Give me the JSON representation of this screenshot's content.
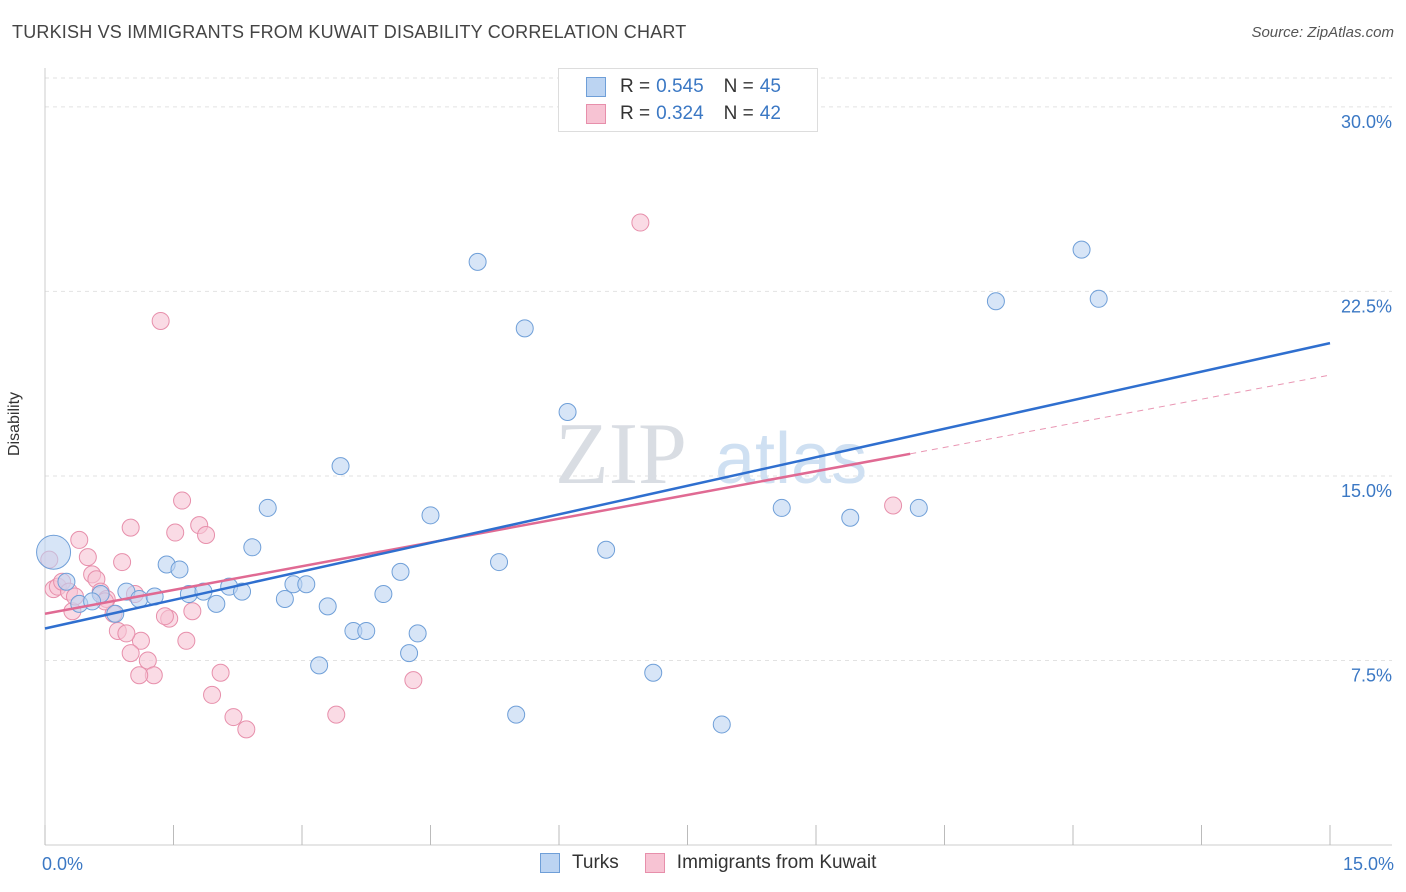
{
  "title": "TURKISH VS IMMIGRANTS FROM KUWAIT DISABILITY CORRELATION CHART",
  "source": "Source: ZipAtlas.com",
  "watermark": {
    "zip": "ZIP",
    "atlas": "atlas"
  },
  "legend_top": {
    "r_label": "R =",
    "n_label": "N =",
    "rows": [
      {
        "r": "0.545",
        "n": "45"
      },
      {
        "r": "0.324",
        "n": "42"
      }
    ]
  },
  "colors": {
    "turks_fill": "#bcd4f2",
    "turks_stroke": "#6f9fd8",
    "turks_line": "#2f6fcf",
    "kuwait_fill": "#f7c3d3",
    "kuwait_stroke": "#e78fab",
    "kuwait_line": "#e06a93",
    "axis_text": "#3b78c4",
    "grid": "#e2e2e2"
  },
  "chart_data": {
    "type": "scatter",
    "xlabel": "",
    "ylabel": "Disability",
    "xlim": [
      0,
      15
    ],
    "ylim": [
      0,
      31.5
    ],
    "x_tick_labels": [
      {
        "value": 0,
        "label": "0.0%"
      },
      {
        "value": 15,
        "label": "15.0%"
      }
    ],
    "y_tick_labels": [
      {
        "value": 7.5,
        "label": "7.5%"
      },
      {
        "value": 15,
        "label": "15.0%"
      },
      {
        "value": 22.5,
        "label": "22.5%"
      },
      {
        "value": 30,
        "label": "30.0%"
      }
    ],
    "series": [
      {
        "name": "Turks",
        "trend": {
          "x0": 0,
          "y0": 8.8,
          "x1": 15,
          "y1": 20.4,
          "dashed_to": null
        },
        "points": [
          {
            "x": 0.1,
            "y": 11.9,
            "big": true
          },
          {
            "x": 0.25,
            "y": 10.7
          },
          {
            "x": 0.4,
            "y": 9.8
          },
          {
            "x": 0.65,
            "y": 10.2
          },
          {
            "x": 0.82,
            "y": 9.4
          },
          {
            "x": 0.95,
            "y": 10.3
          },
          {
            "x": 1.1,
            "y": 10.0
          },
          {
            "x": 1.28,
            "y": 10.1
          },
          {
            "x": 1.42,
            "y": 11.4
          },
          {
            "x": 1.57,
            "y": 11.2
          },
          {
            "x": 1.68,
            "y": 10.2
          },
          {
            "x": 1.85,
            "y": 10.3
          },
          {
            "x": 2.0,
            "y": 9.8
          },
          {
            "x": 2.15,
            "y": 10.5
          },
          {
            "x": 2.3,
            "y": 10.3
          },
          {
            "x": 2.42,
            "y": 12.1
          },
          {
            "x": 2.6,
            "y": 13.7
          },
          {
            "x": 2.8,
            "y": 10.0
          },
          {
            "x": 2.9,
            "y": 10.6
          },
          {
            "x": 3.05,
            "y": 10.6
          },
          {
            "x": 3.2,
            "y": 7.3
          },
          {
            "x": 3.3,
            "y": 9.7
          },
          {
            "x": 3.45,
            "y": 15.4
          },
          {
            "x": 3.6,
            "y": 8.7
          },
          {
            "x": 3.75,
            "y": 8.7
          },
          {
            "x": 3.95,
            "y": 10.2
          },
          {
            "x": 4.15,
            "y": 11.1
          },
          {
            "x": 4.25,
            "y": 7.8
          },
          {
            "x": 4.35,
            "y": 8.6
          },
          {
            "x": 4.5,
            "y": 13.4
          },
          {
            "x": 5.05,
            "y": 23.7
          },
          {
            "x": 5.3,
            "y": 11.5
          },
          {
            "x": 5.5,
            "y": 5.3
          },
          {
            "x": 5.6,
            "y": 21.0
          },
          {
            "x": 6.1,
            "y": 17.6
          },
          {
            "x": 6.55,
            "y": 12.0
          },
          {
            "x": 7.1,
            "y": 7.0
          },
          {
            "x": 7.9,
            "y": 4.9
          },
          {
            "x": 8.6,
            "y": 13.7
          },
          {
            "x": 9.4,
            "y": 13.3
          },
          {
            "x": 10.2,
            "y": 13.7
          },
          {
            "x": 11.1,
            "y": 22.1
          },
          {
            "x": 12.1,
            "y": 24.2
          },
          {
            "x": 12.3,
            "y": 22.2
          },
          {
            "x": 0.55,
            "y": 9.9
          }
        ]
      },
      {
        "name": "Immigrants from Kuwait",
        "trend": {
          "x0": 0,
          "y0": 9.4,
          "x1": 10.1,
          "y1": 15.9,
          "dashed_to": {
            "x": 15,
            "y": 19.1
          }
        },
        "points": [
          {
            "x": 0.05,
            "y": 11.6
          },
          {
            "x": 0.1,
            "y": 10.4
          },
          {
            "x": 0.15,
            "y": 10.5
          },
          {
            "x": 0.2,
            "y": 10.7
          },
          {
            "x": 0.28,
            "y": 10.3
          },
          {
            "x": 0.32,
            "y": 9.5
          },
          {
            "x": 0.4,
            "y": 12.4
          },
          {
            "x": 0.5,
            "y": 11.7
          },
          {
            "x": 0.55,
            "y": 11.0
          },
          {
            "x": 0.6,
            "y": 10.8
          },
          {
            "x": 0.65,
            "y": 10.3
          },
          {
            "x": 0.72,
            "y": 10.0
          },
          {
            "x": 0.8,
            "y": 9.4
          },
          {
            "x": 0.9,
            "y": 11.5
          },
          {
            "x": 1.0,
            "y": 12.9
          },
          {
            "x": 1.05,
            "y": 10.2
          },
          {
            "x": 1.12,
            "y": 8.3
          },
          {
            "x": 1.2,
            "y": 7.5
          },
          {
            "x": 1.27,
            "y": 6.9
          },
          {
            "x": 1.35,
            "y": 21.3
          },
          {
            "x": 1.45,
            "y": 9.2
          },
          {
            "x": 1.52,
            "y": 12.7
          },
          {
            "x": 1.6,
            "y": 14.0
          },
          {
            "x": 1.65,
            "y": 8.3
          },
          {
            "x": 1.72,
            "y": 9.5
          },
          {
            "x": 1.8,
            "y": 13.0
          },
          {
            "x": 1.88,
            "y": 12.6
          },
          {
            "x": 1.95,
            "y": 6.1
          },
          {
            "x": 2.05,
            "y": 7.0
          },
          {
            "x": 2.2,
            "y": 5.2
          },
          {
            "x": 2.35,
            "y": 4.7
          },
          {
            "x": 1.0,
            "y": 7.8
          },
          {
            "x": 0.85,
            "y": 8.7
          },
          {
            "x": 0.95,
            "y": 8.6
          },
          {
            "x": 1.1,
            "y": 6.9
          },
          {
            "x": 1.4,
            "y": 9.3
          },
          {
            "x": 3.4,
            "y": 5.3
          },
          {
            "x": 4.3,
            "y": 6.7
          },
          {
            "x": 6.95,
            "y": 25.3
          },
          {
            "x": 9.9,
            "y": 13.8
          },
          {
            "x": 0.35,
            "y": 10.1
          },
          {
            "x": 0.7,
            "y": 9.9
          }
        ]
      }
    ]
  },
  "bottom_legend": [
    "Turks",
    "Immigrants from Kuwait"
  ]
}
